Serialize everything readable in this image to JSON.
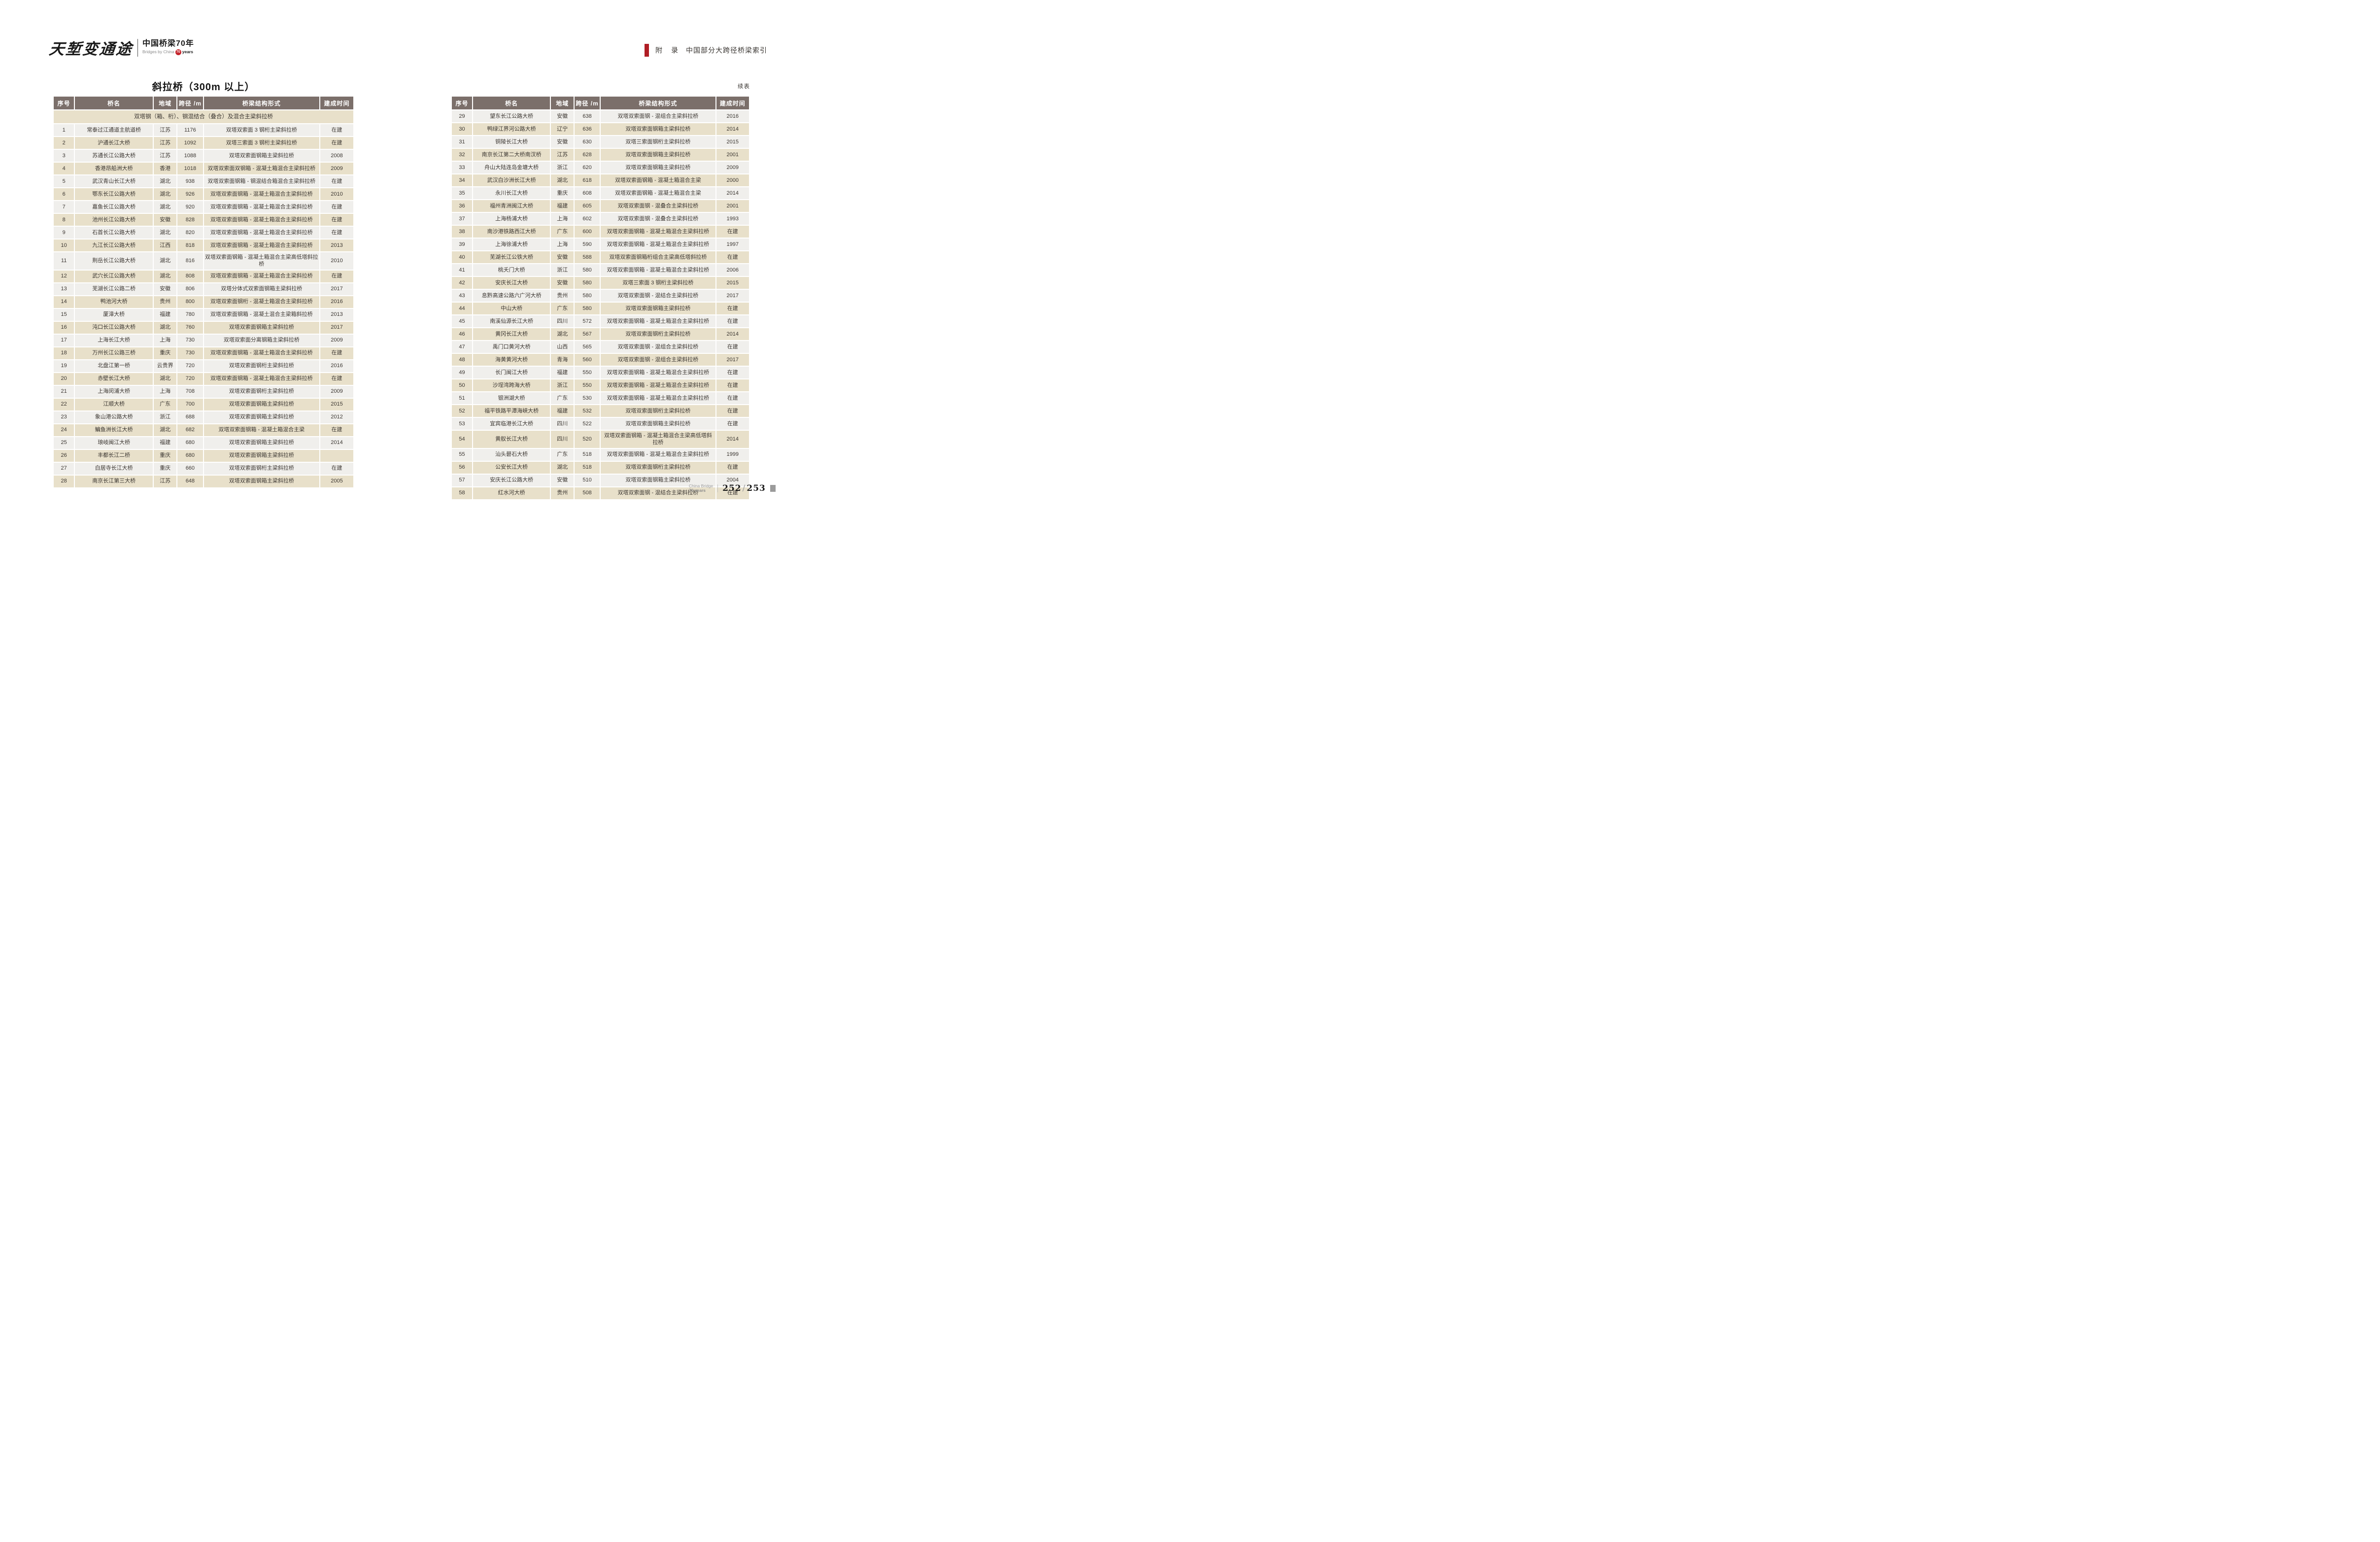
{
  "logo": {
    "calligraphy": "天堑变通途",
    "title": "中国桥梁70年",
    "subtitle": "Bridges by China",
    "badge": "70",
    "years": "years"
  },
  "header_right": {
    "label": "附　录",
    "title": "中国部分大跨径桥梁索引"
  },
  "columns": [
    "序号",
    "桥名",
    "地域",
    "跨径 /m",
    "桥梁结构形式",
    "建成时间"
  ],
  "left_table": {
    "title": "斜拉桥（300m 以上）",
    "category_row": "双塔钢（箱、桁）、钢混结合（叠合）及混合主梁斜拉桥",
    "rows": [
      [
        1,
        "常泰过江通道主航道桥",
        "江苏",
        "1176",
        "双塔双索面 3 钢桁主梁斜拉桥",
        "在建"
      ],
      [
        2,
        "沪通长江大桥",
        "江苏",
        "1092",
        "双塔三索面 3 钢桁主梁斜拉桥",
        "在建"
      ],
      [
        3,
        "苏通长江公路大桥",
        "江苏",
        "1088",
        "双塔双索面钢箱主梁斜拉桥",
        "2008"
      ],
      [
        4,
        "香港昂船洲大桥",
        "香港",
        "1018",
        "双塔双索面双钢箱 - 混凝土箱混合主梁斜拉桥",
        "2009"
      ],
      [
        5,
        "武汉青山长江大桥",
        "湖北",
        "938",
        "双塔双索面钢箱 - 钢混结合箱混合主梁斜拉桥",
        "在建"
      ],
      [
        6,
        "鄂东长江公路大桥",
        "湖北",
        "926",
        "双塔双索面钢箱 - 混凝土箱混合主梁斜拉桥",
        "2010"
      ],
      [
        7,
        "嘉鱼长江公路大桥",
        "湖北",
        "920",
        "双塔双索面钢箱 - 混凝土箱混合主梁斜拉桥",
        "在建"
      ],
      [
        8,
        "池州长江公路大桥",
        "安徽",
        "828",
        "双塔双索面钢箱 - 混凝土箱混合主梁斜拉桥",
        "在建"
      ],
      [
        9,
        "石首长江公路大桥",
        "湖北",
        "820",
        "双塔双索面钢箱 - 混凝土箱混合主梁斜拉桥",
        "在建"
      ],
      [
        10,
        "九江长江公路大桥",
        "江西",
        "818",
        "双塔双索面钢箱 - 混凝土箱混合主梁斜拉桥",
        "2013"
      ],
      [
        11,
        "荆岳长江公路大桥",
        "湖北",
        "816",
        "双塔双索面钢箱 - 混凝土箱混合主梁高低塔斜拉桥",
        "2010"
      ],
      [
        12,
        "武穴长江公路大桥",
        "湖北",
        "808",
        "双塔双索面钢箱 - 混凝土箱混合主梁斜拉桥",
        "在建"
      ],
      [
        13,
        "芜湖长江公路二桥",
        "安徽",
        "806",
        "双塔分体式双索面钢箱主梁斜拉桥",
        "2017"
      ],
      [
        14,
        "鸭池河大桥",
        "贵州",
        "800",
        "双塔双索面钢桁 - 混凝土箱混合主梁斜拉桥",
        "2016"
      ],
      [
        15,
        "厦漳大桥",
        "福建",
        "780",
        "双塔双索面钢箱 - 混凝土混合主梁箱斜拉桥",
        "2013"
      ],
      [
        16,
        "沌口长江公路大桥",
        "湖北",
        "760",
        "双塔双索面钢箱主梁斜拉桥",
        "2017"
      ],
      [
        17,
        "上海长江大桥",
        "上海",
        "730",
        "双塔双索面分离钢箱主梁斜拉桥",
        "2009"
      ],
      [
        18,
        "万州长江公路三桥",
        "重庆",
        "730",
        "双塔双索面钢箱 - 混凝土箱混合主梁斜拉桥",
        "在建"
      ],
      [
        19,
        "北盘江第一桥",
        "云贵界",
        "720",
        "双塔双索面钢桁主梁斜拉桥",
        "2016"
      ],
      [
        20,
        "赤壁长江大桥",
        "湖北",
        "720",
        "双塔双索面钢箱 - 混凝土箱混合主梁斜拉桥",
        "在建"
      ],
      [
        21,
        "上海闵浦大桥",
        "上海",
        "708",
        "双塔双索面钢桁主梁斜拉桥",
        "2009"
      ],
      [
        22,
        "江顺大桥",
        "广东",
        "700",
        "双塔双索面钢箱主梁斜拉桥",
        "2015"
      ],
      [
        23,
        "象山港公路大桥",
        "浙江",
        "688",
        "双塔双索面钢箱主梁斜拉桥",
        "2012"
      ],
      [
        24,
        "鳊鱼洲长江大桥",
        "湖北",
        "682",
        "双塔双索面钢箱 - 混凝土箱混合主梁",
        "在建"
      ],
      [
        25,
        "琅岐闽江大桥",
        "福建",
        "680",
        "双塔双索面钢箱主梁斜拉桥",
        "2014"
      ],
      [
        26,
        "丰都长江二桥",
        "重庆",
        "680",
        "双塔双索面钢箱主梁斜拉桥",
        ""
      ],
      [
        27,
        "白居寺长江大桥",
        "重庆",
        "660",
        "双塔双索面钢桁主梁斜拉桥",
        "在建"
      ],
      [
        28,
        "南京长江第三大桥",
        "江苏",
        "648",
        "双塔双索面钢箱主梁斜拉桥",
        "2005"
      ]
    ]
  },
  "right_table": {
    "continued_label": "续表",
    "rows": [
      [
        29,
        "望东长江公路大桥",
        "安徽",
        "638",
        "双塔双索面钢 - 混组合主梁斜拉桥",
        "2016"
      ],
      [
        30,
        "鸭绿江界河公路大桥",
        "辽宁",
        "636",
        "双塔双索面钢箱主梁斜拉桥",
        "2014"
      ],
      [
        31,
        "铜陵长江大桥",
        "安徽",
        "630",
        "双塔三索面钢桁主梁斜拉桥",
        "2015"
      ],
      [
        32,
        "南京长江第二大桥南汊桥",
        "江苏",
        "628",
        "双塔双索面钢箱主梁斜拉桥",
        "2001"
      ],
      [
        33,
        "舟山大陆连岛金塘大桥",
        "浙江",
        "620",
        "双塔双索面钢箱主梁斜拉桥",
        "2009"
      ],
      [
        34,
        "武汉白沙洲长江大桥",
        "湖北",
        "618",
        "双塔双索面钢箱 - 混凝土箱混合主梁",
        "2000"
      ],
      [
        35,
        "永川长江大桥",
        "重庆",
        "608",
        "双塔双索面钢箱 - 混凝土箱混合主梁",
        "2014"
      ],
      [
        36,
        "福州青洲闽江大桥",
        "福建",
        "605",
        "双塔双索面钢 - 混叠合主梁斜拉桥",
        "2001"
      ],
      [
        37,
        "上海杨浦大桥",
        "上海",
        "602",
        "双塔双索面钢 - 混叠合主梁斜拉桥",
        "1993"
      ],
      [
        38,
        "南沙港铁路西江大桥",
        "广东",
        "600",
        "双塔双索面钢箱 - 混凝土箱混合主梁斜拉桥",
        "在建"
      ],
      [
        39,
        "上海徐浦大桥",
        "上海",
        "590",
        "双塔双索面钢箱 - 混凝土箱混合主梁斜拉桥",
        "1997"
      ],
      [
        40,
        "芜湖长江公铁大桥",
        "安徽",
        "588",
        "双塔双索面钢箱桁组合主梁高低塔斜拉桥",
        "在建"
      ],
      [
        41,
        "桃夭门大桥",
        "浙江",
        "580",
        "双塔双索面钢箱 - 混凝土箱混合主梁斜拉桥",
        "2006"
      ],
      [
        42,
        "安庆长江大桥",
        "安徽",
        "580",
        "双塔三索面 3 钢桁主梁斜拉桥",
        "2015"
      ],
      [
        43,
        "息黔高速公路六广河大桥",
        "贵州",
        "580",
        "双塔双索面钢 - 混结合主梁斜拉桥",
        "2017"
      ],
      [
        44,
        "中山大桥",
        "广东",
        "580",
        "双塔双索面钢箱主梁斜拉桥",
        "在建"
      ],
      [
        45,
        "南溪仙源长江大桥",
        "四川",
        "572",
        "双塔双索面钢箱 - 混凝土箱混合主梁斜拉桥",
        "在建"
      ],
      [
        46,
        "黄冈长江大桥",
        "湖北",
        "567",
        "双塔双索面钢桁主梁斜拉桥",
        "2014"
      ],
      [
        47,
        "禹门口黄河大桥",
        "山西",
        "565",
        "双塔双索面钢 - 混组合主梁斜拉桥",
        "在建"
      ],
      [
        48,
        "海黄黄河大桥",
        "青海",
        "560",
        "双塔双索面钢 - 混组合主梁斜拉桥",
        "2017"
      ],
      [
        49,
        "长门闽江大桥",
        "福建",
        "550",
        "双塔双索面钢箱 - 混凝土箱混合主梁斜拉桥",
        "在建"
      ],
      [
        50,
        "沙埕湾跨海大桥",
        "浙江",
        "550",
        "双塔双索面钢箱 - 混凝土箱混合主梁斜拉桥",
        "在建"
      ],
      [
        51,
        "银洲湖大桥",
        "广东",
        "530",
        "双塔双索面钢箱 - 混凝土箱混合主梁斜拉桥",
        "在建"
      ],
      [
        52,
        "福平铁路平潭海峡大桥",
        "福建",
        "532",
        "双塔双索面钢桁主梁斜拉桥",
        "在建"
      ],
      [
        53,
        "宜宾临港长江大桥",
        "四川",
        "522",
        "双塔双索面钢箱主梁斜拉桥",
        "在建"
      ],
      [
        54,
        "黄舣长江大桥",
        "四川",
        "520",
        "双塔双索面钢箱 - 混凝土箱混合主梁高低塔斜拉桥",
        "2014"
      ],
      [
        55,
        "汕头礐石大桥",
        "广东",
        "518",
        "双塔双索面钢箱 - 混凝土箱混合主梁斜拉桥",
        "1999"
      ],
      [
        56,
        "公安长江大桥",
        "湖北",
        "518",
        "双塔双索面钢桁主梁斜拉桥",
        "在建"
      ],
      [
        57,
        "安庆长江公路大桥",
        "安徽",
        "510",
        "双塔双索面钢箱主梁斜拉桥",
        "2004"
      ],
      [
        58,
        "红水河大桥",
        "贵州",
        "508",
        "双塔双索面钢 - 混结合主梁斜拉桥",
        "在建"
      ]
    ]
  },
  "footer": {
    "brand_top": "China Bridge",
    "brand_bottom": "70 years",
    "page_left": "252",
    "separator": "/",
    "page_right": "253"
  }
}
